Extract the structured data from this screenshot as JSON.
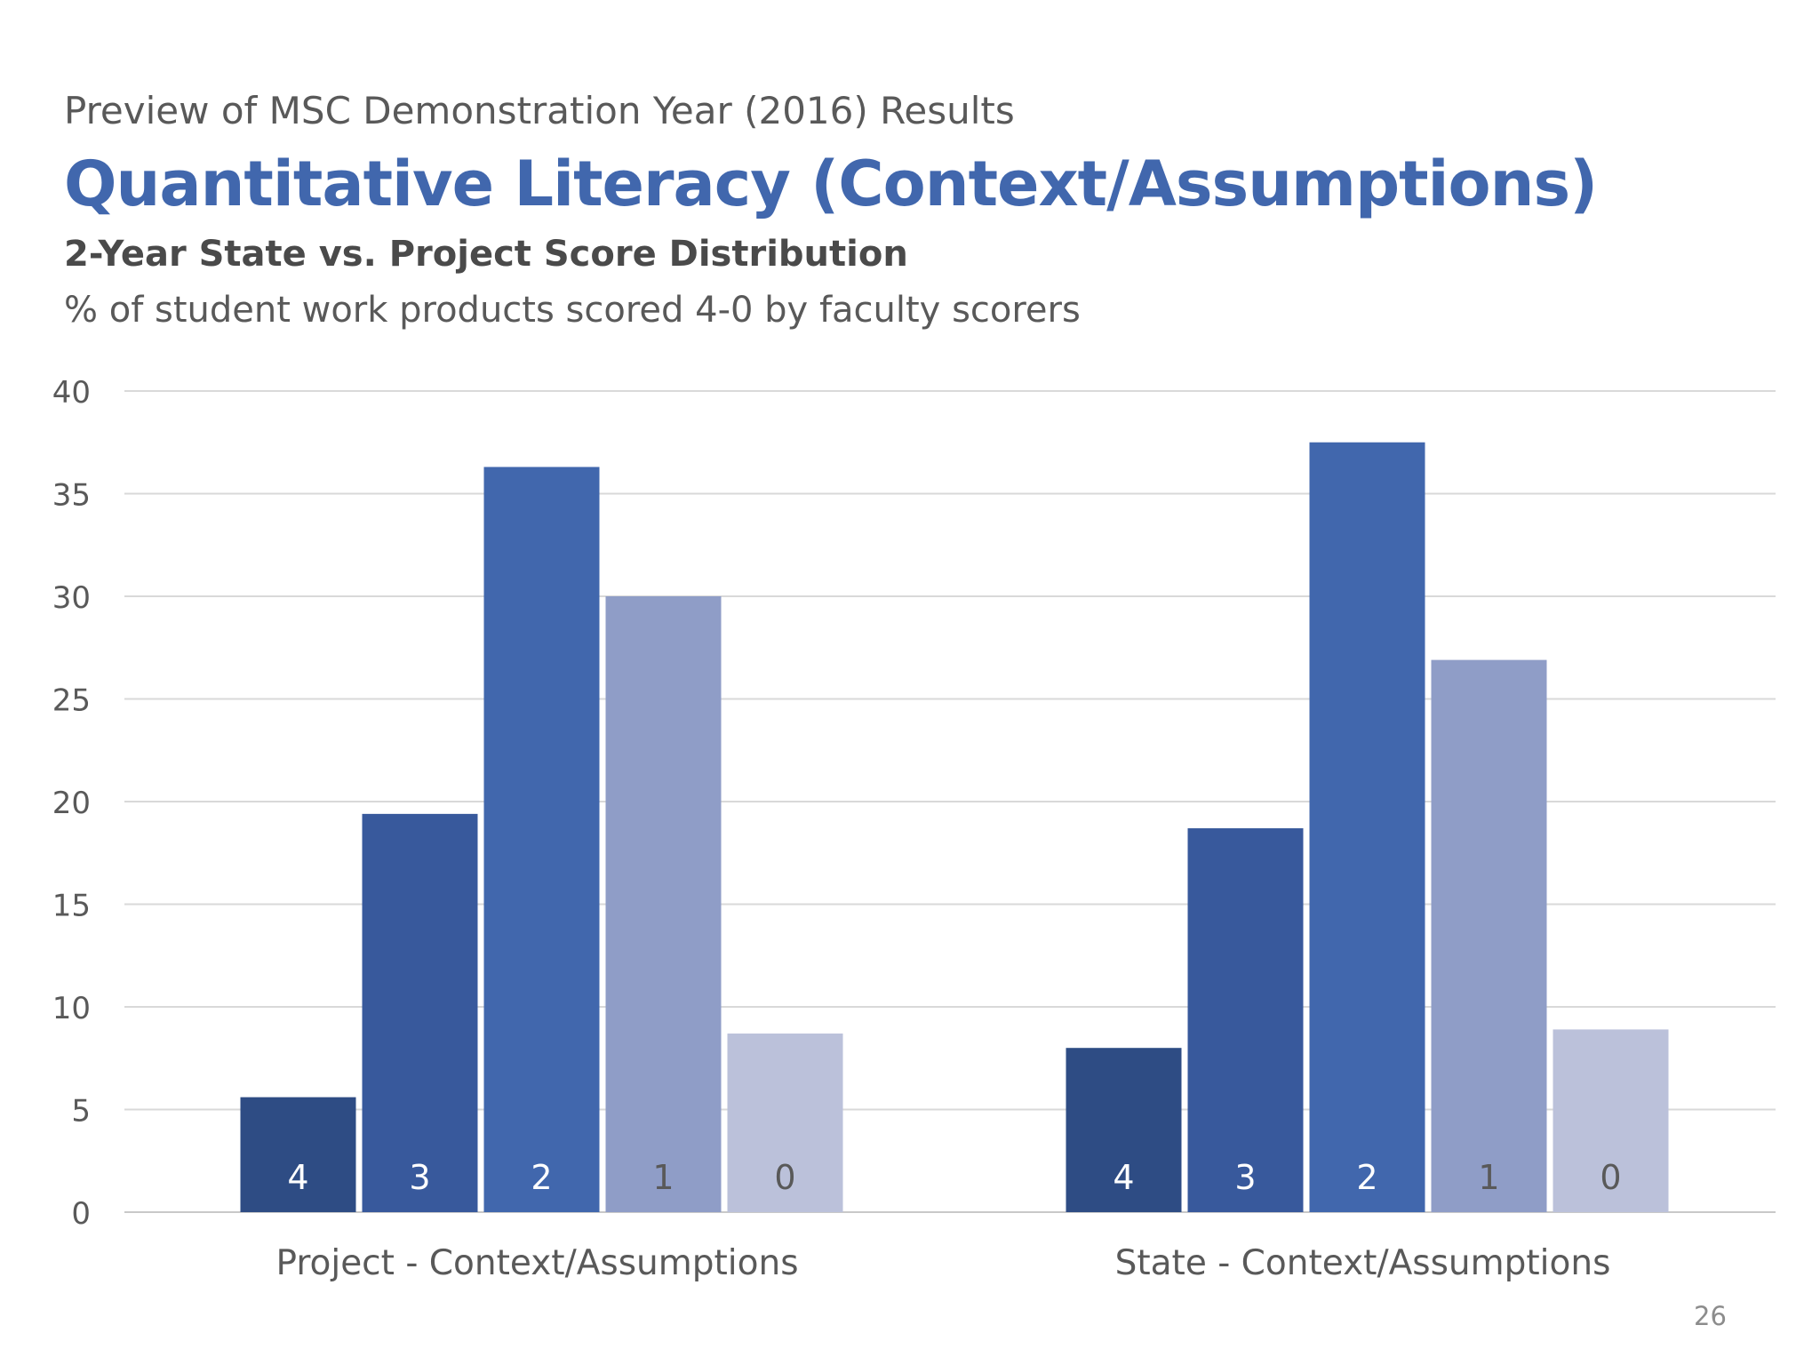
{
  "slide": {
    "kicker": "Preview of MSC Demonstration Year (2016) Results",
    "title": "Quantitative Literacy (Context/Assumptions)",
    "subtitle": "2-Year State vs. Project Score Distribution",
    "description": "% of student work products scored 4-0 by faculty scorers",
    "page_number": "26"
  },
  "chart_data": {
    "type": "bar",
    "categories": [
      "Project - Context/Assumptions",
      "State - Context/Assumptions"
    ],
    "series": [
      {
        "name": "4",
        "color": "#2e4c84",
        "values": [
          5.6,
          8.0
        ]
      },
      {
        "name": "3",
        "color": "#38599c",
        "values": [
          19.4,
          18.7
        ]
      },
      {
        "name": "2",
        "color": "#4167ad",
        "values": [
          36.3,
          37.5
        ]
      },
      {
        "name": "1",
        "color": "#8f9dc7",
        "values": [
          30.0,
          26.9
        ]
      },
      {
        "name": "0",
        "color": "#bbc1da",
        "values": [
          8.7,
          8.9
        ]
      }
    ],
    "bar_label_colors": [
      "#ffffff",
      "#ffffff",
      "#ffffff",
      "#595959",
      "#595959"
    ],
    "ylim": [
      0,
      40
    ],
    "yticks": [
      0,
      5,
      10,
      15,
      20,
      25,
      30,
      35,
      40
    ],
    "grid": true,
    "legend": "none"
  }
}
